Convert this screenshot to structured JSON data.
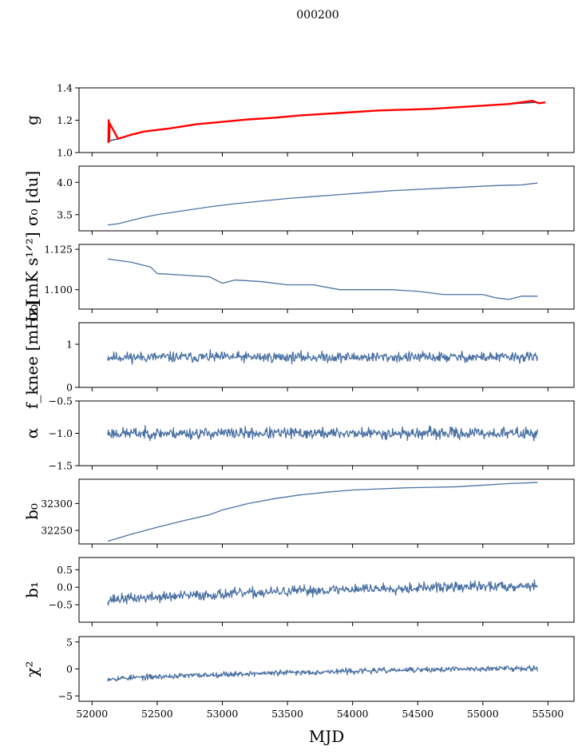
{
  "figure": {
    "title": "000200",
    "xlabel": "MJD"
  },
  "chart_data": [
    {
      "type": "line",
      "ylabel": "g",
      "xlim": [
        51900,
        55700
      ],
      "ylim": [
        1.0,
        1.4
      ],
      "yticks": [
        1.0,
        1.2,
        1.4
      ],
      "ytick_labels": [
        "1.0",
        "1.2",
        "1.4"
      ],
      "line_color": "#2a3d66",
      "overlay_color": "#ff0000",
      "series": [
        {
          "x": [
            52120,
            52200,
            52300,
            52400,
            52500,
            52600,
            52800,
            53000,
            53200,
            53400,
            53600,
            53800,
            54000,
            54200,
            54400,
            54600,
            54800,
            55000,
            55200,
            55400
          ],
          "values": [
            1.07,
            1.085,
            1.11,
            1.13,
            1.14,
            1.15,
            1.175,
            1.19,
            1.205,
            1.215,
            1.23,
            1.24,
            1.25,
            1.26,
            1.265,
            1.27,
            1.28,
            1.29,
            1.3,
            1.31
          ]
        },
        {
          "x": [
            52125,
            52128,
            52131,
            52135,
            52200,
            52300,
            52400,
            52500,
            52600,
            52800,
            53000,
            53200,
            53400,
            53600,
            53800,
            54000,
            54200,
            54400,
            54600,
            54800,
            55000,
            55200,
            55380,
            55430,
            55480
          ],
          "values": [
            1.06,
            1.2,
            1.07,
            1.18,
            1.085,
            1.11,
            1.13,
            1.14,
            1.15,
            1.175,
            1.19,
            1.205,
            1.215,
            1.23,
            1.24,
            1.25,
            1.26,
            1.265,
            1.27,
            1.28,
            1.29,
            1.3,
            1.32,
            1.305,
            1.31
          ]
        }
      ]
    },
    {
      "type": "line",
      "ylabel": "σ₀ [du]",
      "xlim": [
        51900,
        55700
      ],
      "ylim": [
        3.25,
        4.25
      ],
      "yticks": [
        3.5,
        4.0
      ],
      "ytick_labels": [
        "3.5",
        "4.0"
      ],
      "line_color": "#4c72a4",
      "series": [
        {
          "x": [
            52120,
            52200,
            52300,
            52400,
            52500,
            52700,
            52900,
            53100,
            53300,
            53500,
            53700,
            53900,
            54100,
            54300,
            54500,
            54700,
            54900,
            55100,
            55300,
            55420
          ],
          "values": [
            3.34,
            3.36,
            3.41,
            3.46,
            3.5,
            3.56,
            3.62,
            3.67,
            3.71,
            3.75,
            3.78,
            3.81,
            3.84,
            3.87,
            3.89,
            3.91,
            3.93,
            3.95,
            3.96,
            3.99
          ]
        }
      ]
    },
    {
      "type": "line",
      "ylabel": "σ₀[mK s¹ᐟ²]",
      "xlim": [
        51900,
        55700
      ],
      "ylim": [
        1.088,
        1.128
      ],
      "yticks": [
        1.1,
        1.125
      ],
      "ytick_labels": [
        "1.100",
        "1.125"
      ],
      "line_color": "#4c72a4",
      "series": [
        {
          "x": [
            52120,
            52300,
            52450,
            52500,
            52700,
            52900,
            53000,
            53100,
            53300,
            53500,
            53700,
            53900,
            54100,
            54300,
            54500,
            54700,
            54900,
            55000,
            55100,
            55200,
            55300,
            55420
          ],
          "values": [
            1.119,
            1.117,
            1.114,
            1.11,
            1.109,
            1.108,
            1.104,
            1.106,
            1.105,
            1.103,
            1.103,
            1.1,
            1.1,
            1.1,
            1.099,
            1.097,
            1.097,
            1.097,
            1.095,
            1.094,
            1.096,
            1.096
          ]
        }
      ]
    },
    {
      "type": "line",
      "ylabel": "f_knee [mHz]",
      "xlim": [
        51900,
        55700
      ],
      "ylim": [
        0,
        1.5
      ],
      "yticks": [
        0,
        1
      ],
      "ytick_labels": [
        "0",
        "1"
      ],
      "line_color": "#4c72a4",
      "noise_seed": 11,
      "series": [
        {
          "x": [
            52120,
            55420
          ],
          "values": [
            0.7,
            0.7
          ],
          "noise_amplitude": 0.18
        }
      ]
    },
    {
      "type": "line",
      "ylabel": "α",
      "xlim": [
        51900,
        55700
      ],
      "ylim": [
        -1.5,
        -0.5
      ],
      "yticks": [
        -1.5,
        -1.0,
        -0.5
      ],
      "ytick_labels": [
        "−1.5",
        "−1.0",
        "−0.5"
      ],
      "line_color": "#4c72a4",
      "noise_seed": 23,
      "series": [
        {
          "x": [
            52120,
            55420
          ],
          "values": [
            -1.0,
            -1.0
          ],
          "noise_amplitude": 0.13
        }
      ]
    },
    {
      "type": "line",
      "ylabel": "b₀",
      "xlim": [
        51900,
        55700
      ],
      "ylim": [
        32225,
        32345
      ],
      "yticks": [
        32250,
        32300
      ],
      "ytick_labels": [
        "32250",
        "32300"
      ],
      "line_color": "#4c72a4",
      "series": [
        {
          "x": [
            52120,
            52300,
            52500,
            52700,
            52900,
            53000,
            53200,
            53400,
            53600,
            53800,
            54000,
            54200,
            54400,
            54600,
            54800,
            55000,
            55200,
            55420
          ],
          "values": [
            32230,
            32243,
            32256,
            32268,
            32279,
            32288,
            32300,
            32309,
            32316,
            32321,
            32325,
            32327,
            32329,
            32330,
            32331,
            32334,
            32337,
            32339
          ]
        }
      ]
    },
    {
      "type": "line",
      "ylabel": "b₁",
      "xlim": [
        51900,
        55700
      ],
      "ylim": [
        -1.0,
        0.85
      ],
      "yticks": [
        -0.5,
        0.0,
        0.5
      ],
      "ytick_labels": [
        "−0.5",
        "0.0",
        "0.5"
      ],
      "line_color": "#4c72a4",
      "noise_seed": 37,
      "series": [
        {
          "x": [
            52120,
            53000,
            54000,
            55420
          ],
          "values": [
            -0.35,
            -0.2,
            -0.05,
            0.05
          ],
          "noise_amplitude": 0.22
        }
      ]
    },
    {
      "type": "line",
      "ylabel": "χ²",
      "xlim": [
        51900,
        55700
      ],
      "ylim": [
        -6,
        6
      ],
      "yticks": [
        -5,
        0,
        5
      ],
      "ytick_labels": [
        "−5",
        "0",
        "5"
      ],
      "xticks": [
        52000,
        52500,
        53000,
        53500,
        54000,
        54500,
        55000,
        55500
      ],
      "xtick_labels": [
        "52000",
        "52500",
        "53000",
        "53500",
        "54000",
        "54500",
        "55000",
        "55500"
      ],
      "line_color": "#4c72a4",
      "noise_seed": 53,
      "series": [
        {
          "x": [
            52120,
            53000,
            54000,
            55420
          ],
          "values": [
            -1.8,
            -1.0,
            -0.4,
            0.2
          ],
          "noise_amplitude": 0.75
        }
      ]
    }
  ]
}
